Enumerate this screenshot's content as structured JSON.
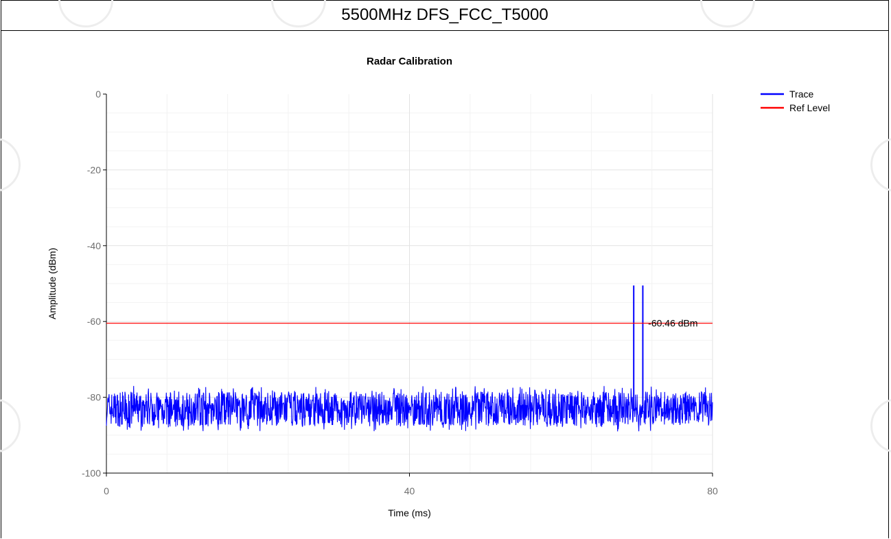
{
  "page": {
    "title": "5500MHz DFS_FCC_T5000"
  },
  "chart_data": {
    "type": "line",
    "title": "Radar Calibration",
    "xlabel": "Time (ms)",
    "ylabel": "Amplitude (dBm)",
    "xlim": [
      0,
      80
    ],
    "ylim": [
      -100,
      0
    ],
    "x_ticks": [
      "0",
      "40",
      "80"
    ],
    "y_ticks": [
      "0",
      "-20",
      "-40",
      "-60",
      "-80",
      "-100"
    ],
    "grid": true,
    "legend": {
      "position": "top-right"
    },
    "series": [
      {
        "name": "Trace",
        "color": "#0000ff",
        "noise_floor_mean": -83,
        "noise_floor_range": [
          -89,
          -77
        ],
        "pulses": [
          {
            "x": 69.6,
            "y": -50.5
          },
          {
            "x": 70.8,
            "y": -50.5
          }
        ]
      },
      {
        "name": "Ref Level",
        "color": "#ff0000",
        "y": -60.46
      }
    ],
    "annotations": [
      {
        "text": "-60.46 dBm",
        "x": 71.5,
        "y": -60.46
      }
    ]
  }
}
